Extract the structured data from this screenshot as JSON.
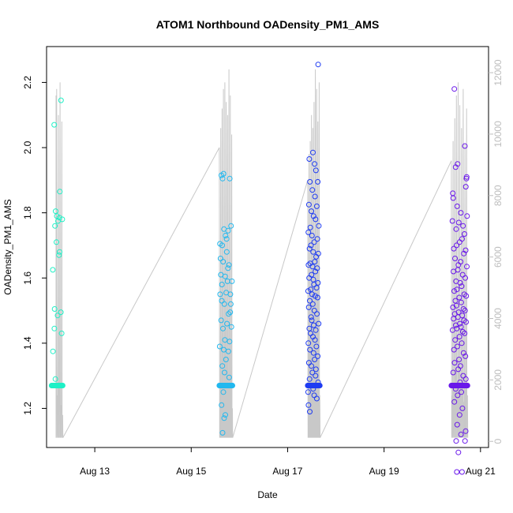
{
  "chart_data": {
    "type": "scatter",
    "title": "ATOM1 Northbound OADensity_PM1_AMS",
    "xlabel": "Date",
    "ylabel": "OADensity_PM1_AMS",
    "x_ticks": [
      "Aug 13",
      "Aug 15",
      "Aug 17",
      "Aug 19",
      "Aug 21"
    ],
    "y_ticks": [
      "1.2",
      "1.4",
      "1.6",
      "1.8",
      "2.0",
      "2.2"
    ],
    "y2_ticks": [
      "0",
      "2000",
      "4000",
      "6000",
      "8000",
      "10000",
      "12000"
    ],
    "xlim": [
      "2016-08-12T00:00",
      "2016-08-21T04:00"
    ],
    "ylim": [
      1.08,
      2.31
    ],
    "y2lim": [
      -200,
      12850
    ],
    "grid": false,
    "legend": "none",
    "colors": {
      "group1": "#1ff0c6",
      "group2": "#22b8ef",
      "group3": "#1f3cf2",
      "group4": "#6a18ea",
      "secondary_line": "#c8c8c8",
      "axis": "#000000",
      "right_axis": "#bdbdbd"
    },
    "groups": [
      {
        "date": "2016-08-12",
        "start_hour": 2.5,
        "end_hour": 8.0,
        "color": "#1ff0c6",
        "points": [
          [
            3.8,
            2.07
          ],
          [
            7.2,
            2.145
          ],
          [
            4.5,
            1.805
          ],
          [
            5.1,
            1.79
          ],
          [
            6.4,
            1.785
          ],
          [
            7.8,
            1.78
          ],
          [
            5.7,
            1.775
          ],
          [
            4.2,
            1.76
          ],
          [
            6.6,
            1.865
          ],
          [
            4.9,
            1.71
          ],
          [
            6.2,
            1.67
          ],
          [
            6.5,
            1.68
          ],
          [
            3.1,
            1.625
          ],
          [
            4.0,
            1.505
          ],
          [
            7.1,
            1.495
          ],
          [
            5.5,
            1.485
          ],
          [
            3.9,
            1.445
          ],
          [
            7.5,
            1.43
          ],
          [
            3.2,
            1.375
          ],
          [
            4.4,
            1.29
          ]
        ],
        "flat_value": 1.27,
        "flat_count": 24,
        "line_peaks": [
          10.6,
          2.6,
          11.3,
          2.9,
          11.6,
          3.2,
          11.8,
          2.4,
          11.0,
          2.8,
          12.0,
          2.1,
          10.8,
          1.8
        ]
      },
      {
        "date": "2016-08-15",
        "start_hour": 14.0,
        "end_hour": 20.5,
        "color": "#22b8ef",
        "points": [
          [
            15.0,
            1.915
          ],
          [
            16.1,
            1.92
          ],
          [
            15.6,
            1.905
          ],
          [
            19.2,
            1.905
          ],
          [
            14.3,
            1.705
          ],
          [
            15.4,
            1.7
          ],
          [
            17.6,
            1.72
          ],
          [
            18.4,
            1.745
          ],
          [
            19.8,
            1.76
          ],
          [
            16.3,
            1.75
          ],
          [
            17.1,
            1.73
          ],
          [
            15.9,
            1.65
          ],
          [
            14.8,
            1.61
          ],
          [
            16.9,
            1.605
          ],
          [
            18.8,
            1.64
          ],
          [
            17.4,
            1.555
          ],
          [
            14.4,
            1.55
          ],
          [
            15.3,
            1.58
          ],
          [
            18.1,
            1.59
          ],
          [
            19.7,
            1.52
          ],
          [
            16.5,
            1.52
          ],
          [
            19.4,
            1.495
          ],
          [
            14.9,
            1.47
          ],
          [
            17.8,
            1.46
          ],
          [
            15.8,
            1.445
          ],
          [
            16.8,
            1.41
          ],
          [
            19.1,
            1.405
          ],
          [
            14.2,
            1.39
          ],
          [
            18.5,
            1.375
          ],
          [
            17.3,
            1.35
          ],
          [
            15.5,
            1.33
          ],
          [
            16.6,
            1.31
          ],
          [
            18.9,
            1.295
          ],
          [
            17.9,
            1.27
          ],
          [
            16.0,
            1.25
          ],
          [
            15.1,
            1.21
          ],
          [
            17.0,
            1.18
          ],
          [
            16.4,
            1.17
          ],
          [
            15.6,
            1.125
          ],
          [
            19.5,
            1.55
          ],
          [
            20.0,
            1.45
          ],
          [
            18.3,
            1.63
          ],
          [
            14.6,
            1.66
          ],
          [
            20.3,
            1.59
          ],
          [
            17.7,
            1.68
          ],
          [
            15.2,
            1.53
          ],
          [
            16.2,
            1.38
          ],
          [
            18.6,
            1.49
          ]
        ],
        "flat_value": 1.27,
        "flat_count": 30,
        "line_peaks": [
          10.0,
          2.2,
          10.6,
          2.7,
          11.2,
          3.1,
          11.8,
          2.2,
          12.0,
          2.6,
          11.4,
          3.4,
          11.0,
          2.4,
          12.4,
          2.8,
          11.6,
          3.0,
          10.4,
          2.0
        ]
      },
      {
        "date": "2016-08-17",
        "start_hour": 10.0,
        "end_hour": 16.0,
        "color": "#1f3cf2",
        "points": [
          [
            15.2,
            2.255
          ],
          [
            12.6,
            1.985
          ],
          [
            10.8,
            1.965
          ],
          [
            13.4,
            1.95
          ],
          [
            14.1,
            1.93
          ],
          [
            11.1,
            1.895
          ],
          [
            15.0,
            1.895
          ],
          [
            12.3,
            1.87
          ],
          [
            13.6,
            1.85
          ],
          [
            10.6,
            1.825
          ],
          [
            14.5,
            1.82
          ],
          [
            11.8,
            1.805
          ],
          [
            12.9,
            1.79
          ],
          [
            13.9,
            1.78
          ],
          [
            15.5,
            1.76
          ],
          [
            11.3,
            1.755
          ],
          [
            10.3,
            1.74
          ],
          [
            12.1,
            1.73
          ],
          [
            14.8,
            1.72
          ],
          [
            13.2,
            1.71
          ],
          [
            11.6,
            1.7
          ],
          [
            10.9,
            1.69
          ],
          [
            12.7,
            1.68
          ],
          [
            15.3,
            1.675
          ],
          [
            14.2,
            1.665
          ],
          [
            13.5,
            1.65
          ],
          [
            11.2,
            1.645
          ],
          [
            10.4,
            1.64
          ],
          [
            12.4,
            1.635
          ],
          [
            14.7,
            1.63
          ],
          [
            13.8,
            1.62
          ],
          [
            11.9,
            1.61
          ],
          [
            10.7,
            1.6
          ],
          [
            12.8,
            1.595
          ],
          [
            15.1,
            1.585
          ],
          [
            13.1,
            1.58
          ],
          [
            14.4,
            1.57
          ],
          [
            11.5,
            1.565
          ],
          [
            10.2,
            1.56
          ],
          [
            12.2,
            1.55
          ],
          [
            13.7,
            1.545
          ],
          [
            14.9,
            1.54
          ],
          [
            11.0,
            1.53
          ],
          [
            12.5,
            1.52
          ],
          [
            10.5,
            1.51
          ],
          [
            13.3,
            1.5
          ],
          [
            14.6,
            1.49
          ],
          [
            11.7,
            1.48
          ],
          [
            12.0,
            1.47
          ],
          [
            15.4,
            1.46
          ],
          [
            13.0,
            1.455
          ],
          [
            10.8,
            1.445
          ],
          [
            14.0,
            1.44
          ],
          [
            11.4,
            1.43
          ],
          [
            12.6,
            1.42
          ],
          [
            13.6,
            1.41
          ],
          [
            10.3,
            1.4
          ],
          [
            14.3,
            1.39
          ],
          [
            11.1,
            1.38
          ],
          [
            12.9,
            1.37
          ],
          [
            15.0,
            1.36
          ],
          [
            13.4,
            1.35
          ],
          [
            10.6,
            1.34
          ],
          [
            11.8,
            1.33
          ],
          [
            14.1,
            1.32
          ],
          [
            12.3,
            1.31
          ],
          [
            13.9,
            1.3
          ],
          [
            10.9,
            1.29
          ],
          [
            15.2,
            1.28
          ],
          [
            11.6,
            1.27
          ],
          [
            12.7,
            1.26
          ],
          [
            10.2,
            1.25
          ],
          [
            13.2,
            1.24
          ],
          [
            14.5,
            1.23
          ],
          [
            10.4,
            1.21
          ],
          [
            11.0,
            1.19
          ]
        ],
        "flat_value": 1.27,
        "flat_count": 28,
        "line_peaks": [
          9.0,
          2.0,
          9.8,
          2.6,
          10.2,
          3.0,
          11.0,
          2.4,
          10.6,
          3.6,
          11.4,
          2.8,
          12.4,
          3.2,
          11.8,
          2.6,
          10.8,
          2.2,
          12.0,
          2.4
        ]
      },
      {
        "date": "2016-08-20",
        "start_hour": 9.5,
        "end_hour": 17.5,
        "color": "#6a18ea",
        "points": [
          [
            11.0,
            2.18
          ],
          [
            12.6,
            1.95
          ],
          [
            11.6,
            1.94
          ],
          [
            16.2,
            2.005
          ],
          [
            17.1,
            1.91
          ],
          [
            17.0,
            1.905
          ],
          [
            16.7,
            1.88
          ],
          [
            10.2,
            1.86
          ],
          [
            10.4,
            1.845
          ],
          [
            12.4,
            1.82
          ],
          [
            14.2,
            1.8
          ],
          [
            17.3,
            1.79
          ],
          [
            10.0,
            1.775
          ],
          [
            13.2,
            1.77
          ],
          [
            15.3,
            1.76
          ],
          [
            11.9,
            1.75
          ],
          [
            16.0,
            1.735
          ],
          [
            14.8,
            1.72
          ],
          [
            13.6,
            1.71
          ],
          [
            12.1,
            1.7
          ],
          [
            10.7,
            1.69
          ],
          [
            16.6,
            1.685
          ],
          [
            15.7,
            1.675
          ],
          [
            11.3,
            1.66
          ],
          [
            14.1,
            1.65
          ],
          [
            13.0,
            1.64
          ],
          [
            17.2,
            1.635
          ],
          [
            12.7,
            1.625
          ],
          [
            10.5,
            1.62
          ],
          [
            15.1,
            1.61
          ],
          [
            16.4,
            1.6
          ],
          [
            11.8,
            1.59
          ],
          [
            13.9,
            1.585
          ],
          [
            14.6,
            1.575
          ],
          [
            12.3,
            1.565
          ],
          [
            10.9,
            1.56
          ],
          [
            15.9,
            1.55
          ],
          [
            16.9,
            1.545
          ],
          [
            13.4,
            1.54
          ],
          [
            11.5,
            1.53
          ],
          [
            14.4,
            1.525
          ],
          [
            12.0,
            1.515
          ],
          [
            10.3,
            1.51
          ],
          [
            15.5,
            1.505
          ],
          [
            16.3,
            1.5
          ],
          [
            13.1,
            1.495
          ],
          [
            11.2,
            1.49
          ],
          [
            14.9,
            1.485
          ],
          [
            12.8,
            1.48
          ],
          [
            10.6,
            1.475
          ],
          [
            15.8,
            1.47
          ],
          [
            16.8,
            1.465
          ],
          [
            13.7,
            1.46
          ],
          [
            11.7,
            1.455
          ],
          [
            14.3,
            1.45
          ],
          [
            12.2,
            1.445
          ],
          [
            10.1,
            1.44
          ],
          [
            15.2,
            1.435
          ],
          [
            16.1,
            1.43
          ],
          [
            13.5,
            1.42
          ],
          [
            11.4,
            1.41
          ],
          [
            14.7,
            1.4
          ],
          [
            12.5,
            1.39
          ],
          [
            10.8,
            1.38
          ],
          [
            15.6,
            1.37
          ],
          [
            16.5,
            1.36
          ],
          [
            13.3,
            1.35
          ],
          [
            11.1,
            1.34
          ],
          [
            14.0,
            1.33
          ],
          [
            12.9,
            1.32
          ],
          [
            10.4,
            1.31
          ],
          [
            15.4,
            1.3
          ],
          [
            16.7,
            1.29
          ],
          [
            13.8,
            1.28
          ],
          [
            11.6,
            1.26
          ],
          [
            14.5,
            1.25
          ],
          [
            12.6,
            1.24
          ],
          [
            11.0,
            1.22
          ],
          [
            15.0,
            1.2
          ],
          [
            13.6,
            1.18
          ],
          [
            12.4,
            1.15
          ],
          [
            14.3,
            1.12
          ],
          [
            11.9,
            1.1
          ],
          [
            16.3,
            1.1
          ],
          [
            12.2,
            1.005
          ],
          [
            14.8,
            1.005
          ],
          [
            16.6,
            1.13
          ],
          [
            13.0,
            1.065
          ]
        ],
        "flat_value": 1.27,
        "flat_count": 34,
        "line_peaks": [
          9.6,
          2.4,
          10.2,
          2.8,
          10.9,
          3.2,
          11.6,
          2.6,
          12.0,
          3.4,
          11.3,
          2.8,
          10.6,
          3.0,
          11.8,
          2.2,
          10.1,
          2.6,
          11.2,
          2.4
        ]
      }
    ]
  }
}
